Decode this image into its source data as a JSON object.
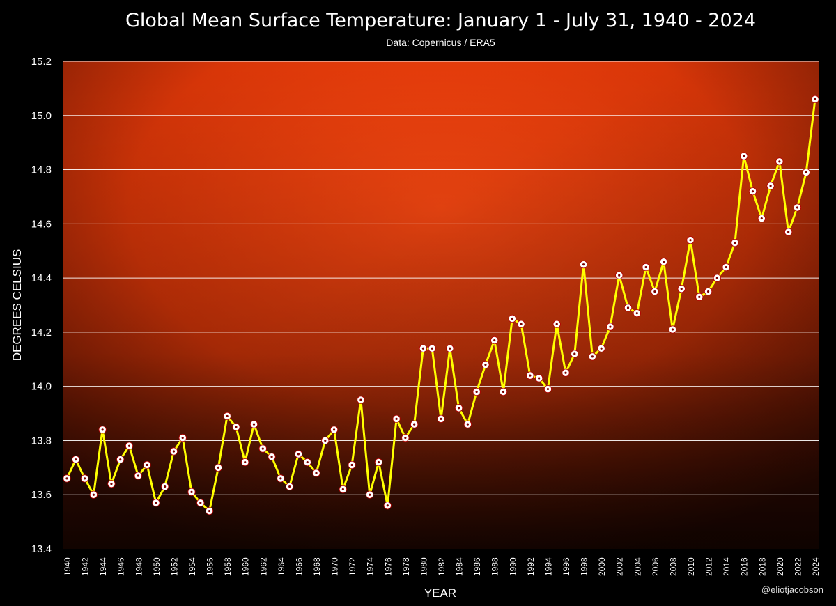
{
  "chart_data": {
    "type": "line",
    "title": "Global Mean Surface Temperature: January 1 - July 31, 1940 - 2024",
    "subtitle": "Data: Copernicus / ERA5",
    "xlabel": "YEAR",
    "ylabel": "DEGREES CELSIUS",
    "credit": "@eliotjacobson",
    "ylim": [
      13.4,
      15.2
    ],
    "y_ticks": [
      "13.4",
      "13.6",
      "13.8",
      "14.0",
      "14.2",
      "14.4",
      "14.6",
      "14.8",
      "15.0",
      "15.2"
    ],
    "grid": true,
    "series": [
      {
        "name": "Global Mean Surface Temperature",
        "color": "#ffff00",
        "x": [
          1940,
          1941,
          1942,
          1943,
          1944,
          1945,
          1946,
          1947,
          1948,
          1949,
          1950,
          1951,
          1952,
          1953,
          1954,
          1955,
          1956,
          1957,
          1958,
          1959,
          1960,
          1961,
          1962,
          1963,
          1964,
          1965,
          1966,
          1967,
          1968,
          1969,
          1970,
          1971,
          1972,
          1973,
          1974,
          1975,
          1976,
          1977,
          1978,
          1979,
          1980,
          1981,
          1982,
          1983,
          1984,
          1985,
          1986,
          1987,
          1988,
          1989,
          1990,
          1991,
          1992,
          1993,
          1994,
          1995,
          1996,
          1997,
          1998,
          1999,
          2000,
          2001,
          2002,
          2003,
          2004,
          2005,
          2006,
          2007,
          2008,
          2009,
          2010,
          2011,
          2012,
          2013,
          2014,
          2015,
          2016,
          2017,
          2018,
          2019,
          2020,
          2021,
          2022,
          2023,
          2024
        ],
        "values": [
          13.66,
          13.73,
          13.66,
          13.6,
          13.84,
          13.64,
          13.73,
          13.78,
          13.67,
          13.71,
          13.57,
          13.63,
          13.76,
          13.81,
          13.61,
          13.57,
          13.54,
          13.7,
          13.89,
          13.85,
          13.72,
          13.86,
          13.77,
          13.74,
          13.66,
          13.63,
          13.75,
          13.72,
          13.68,
          13.8,
          13.84,
          13.62,
          13.71,
          13.95,
          13.6,
          13.72,
          13.56,
          13.88,
          13.81,
          13.86,
          14.14,
          14.14,
          13.88,
          14.14,
          13.92,
          13.86,
          13.98,
          14.08,
          14.17,
          13.98,
          14.25,
          14.23,
          14.04,
          14.03,
          13.99,
          14.23,
          14.05,
          14.12,
          14.45,
          14.11,
          14.14,
          14.22,
          14.41,
          14.29,
          14.27,
          14.44,
          14.35,
          14.46,
          14.21,
          14.36,
          14.54,
          14.33,
          14.35,
          14.4,
          14.44,
          14.53,
          14.85,
          14.72,
          14.62,
          14.74,
          14.83,
          14.57,
          14.66,
          14.79,
          15.06
        ]
      }
    ]
  }
}
